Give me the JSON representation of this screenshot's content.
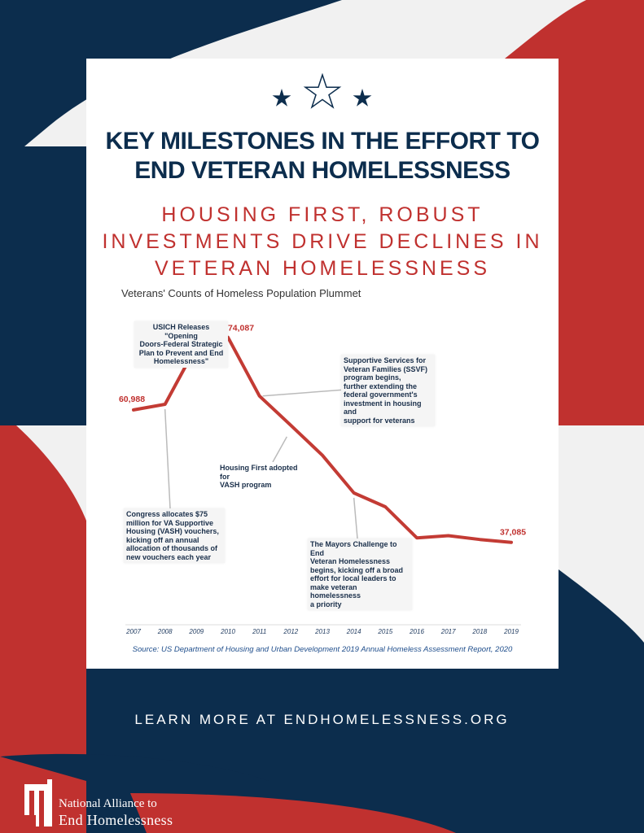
{
  "colors": {
    "navy": "#0c2d4d",
    "red": "#c0312f",
    "light": "#f1f1f1",
    "line": "#c33b34",
    "leader": "#bbbbbb"
  },
  "icons": [
    "star-icon",
    "star-outline-icon",
    "star-icon",
    "building-logo-icon"
  ],
  "poster": {
    "title_line1": "KEY MILESTONES IN THE EFFORT TO",
    "title_line2": "END VETERAN HOMELESSNESS",
    "subtitle_line1": "HOUSING FIRST, ROBUST",
    "subtitle_line2": "INVESTMENTS DRIVE DECLINES IN",
    "subtitle_line3": "VETERAN HOMELESSNESS",
    "learn_more": "LEARN MORE AT ENDHOMELESSNESS.ORG"
  },
  "organization": {
    "name_line1": "National Alliance to",
    "name_line2": "End Homelessness"
  },
  "chart_data": {
    "type": "line",
    "title": "Veterans' Counts of Homeless Population Plummet",
    "source": "Source: US Department of Housing and Urban Development 2019 Annual Homeless Assessment Report, 2020",
    "x": [
      "2007",
      "2008",
      "2009",
      "2010",
      "2011",
      "2012",
      "2013",
      "2014",
      "2015",
      "2016",
      "2017",
      "2018",
      "2019"
    ],
    "series": [
      {
        "values": [
          60988,
          62000,
          72500,
          74087,
          63500,
          58200,
          52800,
          46000,
          43500,
          37900,
          38300,
          37600,
          37085
        ]
      }
    ],
    "ylim": [
      30000,
      78000
    ],
    "grid": false,
    "data_labels": [
      {
        "index": 0,
        "text": "60,988"
      },
      {
        "index": 3,
        "text": "74,087"
      },
      {
        "index": 12,
        "text": "37,085"
      }
    ],
    "annotations": [
      {
        "lines": [
          "USICH Releases \"Opening",
          "Doors-Federal Strategic",
          "Plan to Prevent and End",
          "Homelessness\""
        ]
      },
      {
        "lines": [
          "Supportive Services for",
          "Veteran Families (SSVF)",
          "program begins,",
          "further extending the",
          "federal government's",
          "investment in housing and",
          "support for veterans"
        ]
      },
      {
        "lines": [
          "Housing First adopted for",
          "VASH program"
        ]
      },
      {
        "lines": [
          "Congress allocates $75",
          "million for VA Supportive",
          "Housing (VASH) vouchers,",
          "kicking off an annual",
          "allocation of thousands of",
          "new vouchers each year"
        ]
      },
      {
        "lines": [
          "The Mayors Challenge to End",
          "Veteran Homelessness",
          "begins, kicking off a broad",
          "effort for local leaders to",
          "make veteran homelessness",
          "a priority"
        ]
      }
    ]
  }
}
